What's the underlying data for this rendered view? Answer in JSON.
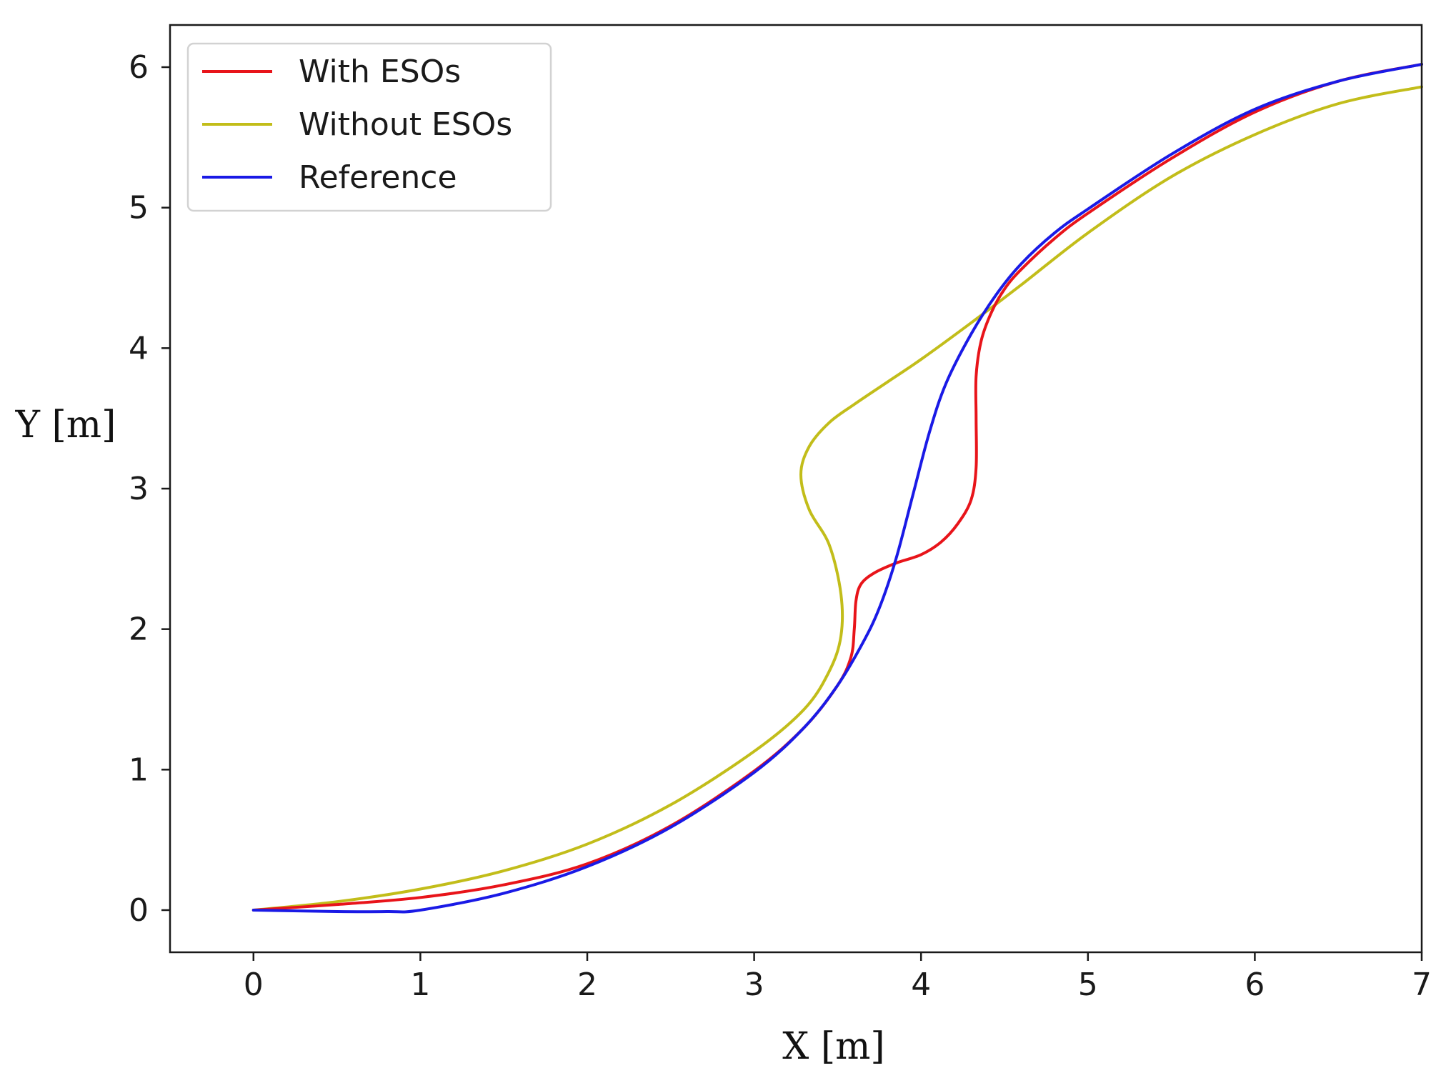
{
  "chart_data": {
    "type": "line",
    "title": "",
    "xlabel": "X [m]",
    "ylabel": "Y [m]",
    "xlim": [
      -0.5,
      7
    ],
    "ylim": [
      -0.3,
      6.3
    ],
    "xticks": [
      0,
      1,
      2,
      3,
      4,
      5,
      6,
      7
    ],
    "yticks": [
      0,
      1,
      2,
      3,
      4,
      5,
      6
    ],
    "xtick_labels": [
      "0",
      "1",
      "2",
      "3",
      "4",
      "5",
      "6",
      "7"
    ],
    "ytick_labels": [
      "0",
      "1",
      "2",
      "3",
      "4",
      "5",
      "6"
    ],
    "grid": false,
    "legend_position": "upper-left",
    "series": [
      {
        "name": "With ESOs",
        "color": "#e8141a",
        "points": [
          [
            0,
            0
          ],
          [
            0.5,
            0.04
          ],
          [
            1,
            0.09
          ],
          [
            1.5,
            0.18
          ],
          [
            2,
            0.33
          ],
          [
            2.5,
            0.6
          ],
          [
            3,
            0.99
          ],
          [
            3.3,
            1.3
          ],
          [
            3.5,
            1.6
          ],
          [
            3.58,
            1.8
          ],
          [
            3.6,
            2.0
          ],
          [
            3.61,
            2.2
          ],
          [
            3.64,
            2.32
          ],
          [
            3.72,
            2.4
          ],
          [
            3.85,
            2.47
          ],
          [
            4.0,
            2.53
          ],
          [
            4.12,
            2.62
          ],
          [
            4.22,
            2.75
          ],
          [
            4.3,
            2.92
          ],
          [
            4.33,
            3.15
          ],
          [
            4.33,
            3.5
          ],
          [
            4.33,
            3.8
          ],
          [
            4.36,
            4.05
          ],
          [
            4.42,
            4.25
          ],
          [
            4.5,
            4.42
          ],
          [
            4.6,
            4.56
          ],
          [
            4.8,
            4.78
          ],
          [
            5.0,
            4.96
          ],
          [
            5.5,
            5.35
          ],
          [
            6.0,
            5.68
          ],
          [
            6.5,
            5.9
          ],
          [
            7,
            6.02
          ]
        ]
      },
      {
        "name": "Without ESOs",
        "color": "#c2bd1a",
        "points": [
          [
            0,
            0
          ],
          [
            0.5,
            0.06
          ],
          [
            1,
            0.15
          ],
          [
            1.5,
            0.28
          ],
          [
            2,
            0.47
          ],
          [
            2.5,
            0.75
          ],
          [
            3,
            1.13
          ],
          [
            3.3,
            1.43
          ],
          [
            3.45,
            1.7
          ],
          [
            3.52,
            1.95
          ],
          [
            3.52,
            2.25
          ],
          [
            3.45,
            2.6
          ],
          [
            3.33,
            2.85
          ],
          [
            3.28,
            3.1
          ],
          [
            3.33,
            3.3
          ],
          [
            3.45,
            3.47
          ],
          [
            3.6,
            3.6
          ],
          [
            3.8,
            3.76
          ],
          [
            4.0,
            3.92
          ],
          [
            4.3,
            4.18
          ],
          [
            4.6,
            4.45
          ],
          [
            5.0,
            4.82
          ],
          [
            5.5,
            5.22
          ],
          [
            6.0,
            5.52
          ],
          [
            6.5,
            5.74
          ],
          [
            7,
            5.86
          ]
        ]
      },
      {
        "name": "Reference",
        "color": "#1a1ae6",
        "points": [
          [
            0,
            0
          ],
          [
            0.5,
            -0.01
          ],
          [
            0.8,
            -0.01
          ],
          [
            1,
            0.0
          ],
          [
            1.5,
            0.12
          ],
          [
            2,
            0.31
          ],
          [
            2.5,
            0.59
          ],
          [
            3,
            0.98
          ],
          [
            3.3,
            1.3
          ],
          [
            3.5,
            1.6
          ],
          [
            3.65,
            1.9
          ],
          [
            3.75,
            2.15
          ],
          [
            3.85,
            2.5
          ],
          [
            3.95,
            2.95
          ],
          [
            4.05,
            3.4
          ],
          [
            4.15,
            3.75
          ],
          [
            4.3,
            4.1
          ],
          [
            4.45,
            4.38
          ],
          [
            4.6,
            4.6
          ],
          [
            4.8,
            4.82
          ],
          [
            5.0,
            4.99
          ],
          [
            5.5,
            5.38
          ],
          [
            6.0,
            5.7
          ],
          [
            6.5,
            5.9
          ],
          [
            7,
            6.02
          ]
        ]
      }
    ]
  }
}
